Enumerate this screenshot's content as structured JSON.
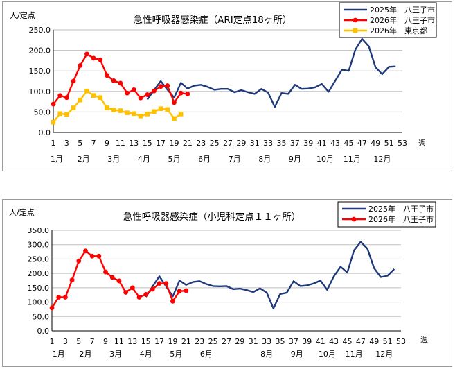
{
  "week_unit": "週",
  "chart_data": [
    {
      "type": "line",
      "title": "急性呼吸器感染症（ARI定点18ヶ所）",
      "ylabel": "人/定点",
      "xlabel": "週",
      "ylim": [
        0,
        250
      ],
      "yticks": [
        "0.0",
        "50.0",
        "100.0",
        "150.0",
        "200.0",
        "250.0"
      ],
      "xlim": [
        1,
        53
      ],
      "xticks": [
        1,
        3,
        5,
        7,
        9,
        11,
        13,
        15,
        17,
        19,
        21,
        23,
        25,
        27,
        29,
        31,
        33,
        35,
        37,
        39,
        41,
        43,
        45,
        47,
        49,
        51,
        53
      ],
      "months": [
        {
          "label": "1月",
          "week": 1.5
        },
        {
          "label": "2月",
          "week": 5.5
        },
        {
          "label": "3月",
          "week": 10
        },
        {
          "label": "4月",
          "week": 14.5
        },
        {
          "label": "5月",
          "week": 19
        },
        {
          "label": "6月",
          "week": 23.5
        },
        {
          "label": "7月",
          "week": 28
        },
        {
          "label": "8月",
          "week": 32.5
        },
        {
          "label": "9月",
          "week": 37
        },
        {
          "label": "10月",
          "week": 41.5
        },
        {
          "label": "11月",
          "week": 45.5
        },
        {
          "label": "12月",
          "week": 50
        }
      ],
      "grid": true,
      "legend_position": "top-right",
      "series": [
        {
          "name": "2025年　八王子市",
          "color": "#1f3a7a",
          "marker": "none",
          "x": [
            15,
            16,
            17,
            18,
            19,
            20,
            21,
            22,
            23,
            24,
            25,
            26,
            27,
            28,
            29,
            30,
            31,
            32,
            33,
            34,
            35,
            36,
            37,
            38,
            39,
            40,
            41,
            42,
            43,
            44,
            45,
            46,
            47,
            48,
            49,
            50,
            51,
            52
          ],
          "y": [
            80,
            103,
            125,
            104,
            85,
            121,
            107,
            114,
            116,
            111,
            104,
            106,
            106,
            98,
            103,
            98,
            94,
            106,
            97,
            62,
            96,
            94,
            116,
            106,
            107,
            110,
            118,
            99,
            126,
            153,
            150,
            202,
            228,
            210,
            159,
            142,
            160,
            161
          ]
        },
        {
          "name": "2026年　八王子市",
          "color": "#ff0000",
          "marker": "circle",
          "x": [
            1,
            2,
            3,
            4,
            5,
            6,
            7,
            8,
            9,
            10,
            11,
            12,
            13,
            14,
            15,
            16,
            17,
            18,
            19,
            20,
            21
          ],
          "y": [
            69,
            90,
            85,
            125,
            163,
            191,
            181,
            177,
            139,
            126,
            120,
            96,
            104,
            84,
            92,
            101,
            112,
            114,
            73,
            96,
            94
          ]
        },
        {
          "name": "2026年　東京都",
          "color": "#ffc000",
          "marker": "square",
          "x": [
            1,
            2,
            3,
            4,
            5,
            6,
            7,
            8,
            9,
            10,
            11,
            12,
            13,
            14,
            15,
            16,
            17,
            18,
            19,
            20
          ],
          "y": [
            25,
            46,
            44,
            60,
            79,
            101,
            90,
            85,
            60,
            55,
            53,
            48,
            46,
            40,
            45,
            51,
            58,
            56,
            34,
            45
          ]
        }
      ]
    },
    {
      "type": "line",
      "title": "急性呼吸器感染症（小児科定点１１ヶ所）",
      "ylabel": "人/定点",
      "xlabel": "週",
      "ylim": [
        0,
        350
      ],
      "yticks": [
        "0.0",
        "50.0",
        "100.0",
        "150.0",
        "200.0",
        "250.0",
        "300.0",
        "350.0"
      ],
      "xlim": [
        1,
        53
      ],
      "xticks": [
        1,
        3,
        5,
        7,
        9,
        11,
        13,
        15,
        17,
        19,
        21,
        23,
        25,
        27,
        29,
        31,
        33,
        35,
        37,
        39,
        41,
        43,
        45,
        47,
        49,
        51,
        53
      ],
      "months": [
        {
          "label": "1月",
          "week": 2
        },
        {
          "label": "2月",
          "week": 6
        },
        {
          "label": "3月",
          "week": 10.5
        },
        {
          "label": "4月",
          "week": 15
        },
        {
          "label": "5月",
          "week": 19.5
        },
        {
          "label": "6月",
          "week": 24
        },
        {
          "label": "8月",
          "week": 33
        },
        {
          "label": "9月",
          "week": 37.5
        },
        {
          "label": "10月",
          "week": 42
        },
        {
          "label": "11月",
          "week": 46
        },
        {
          "label": "12月",
          "week": 50.5
        }
      ],
      "grid": true,
      "legend_position": "top-right",
      "series": [
        {
          "name": "2025年　八王子市",
          "color": "#1f3a7a",
          "marker": "none",
          "x": [
            15,
            16,
            17,
            18,
            19,
            20,
            21,
            22,
            23,
            24,
            25,
            26,
            27,
            28,
            29,
            30,
            31,
            32,
            33,
            34,
            35,
            36,
            37,
            38,
            39,
            40,
            41,
            42,
            43,
            44,
            45,
            46,
            47,
            48,
            49,
            50,
            51,
            52
          ],
          "y": [
            118,
            155,
            190,
            155,
            120,
            175,
            160,
            170,
            173,
            163,
            156,
            155,
            156,
            145,
            147,
            142,
            135,
            148,
            133,
            78,
            128,
            133,
            173,
            156,
            158,
            165,
            175,
            143,
            190,
            223,
            203,
            280,
            310,
            286,
            218,
            187,
            192,
            215
          ]
        },
        {
          "name": "2026年　八王子市",
          "color": "#ff0000",
          "marker": "circle",
          "x": [
            1,
            2,
            3,
            4,
            5,
            6,
            7,
            8,
            9,
            10,
            11,
            12,
            13,
            14,
            15,
            16,
            17,
            18,
            19,
            20,
            21
          ],
          "y": [
            80,
            117,
            117,
            177,
            243,
            278,
            260,
            260,
            205,
            186,
            174,
            134,
            150,
            117,
            127,
            145,
            165,
            165,
            103,
            138,
            140
          ]
        }
      ]
    }
  ]
}
